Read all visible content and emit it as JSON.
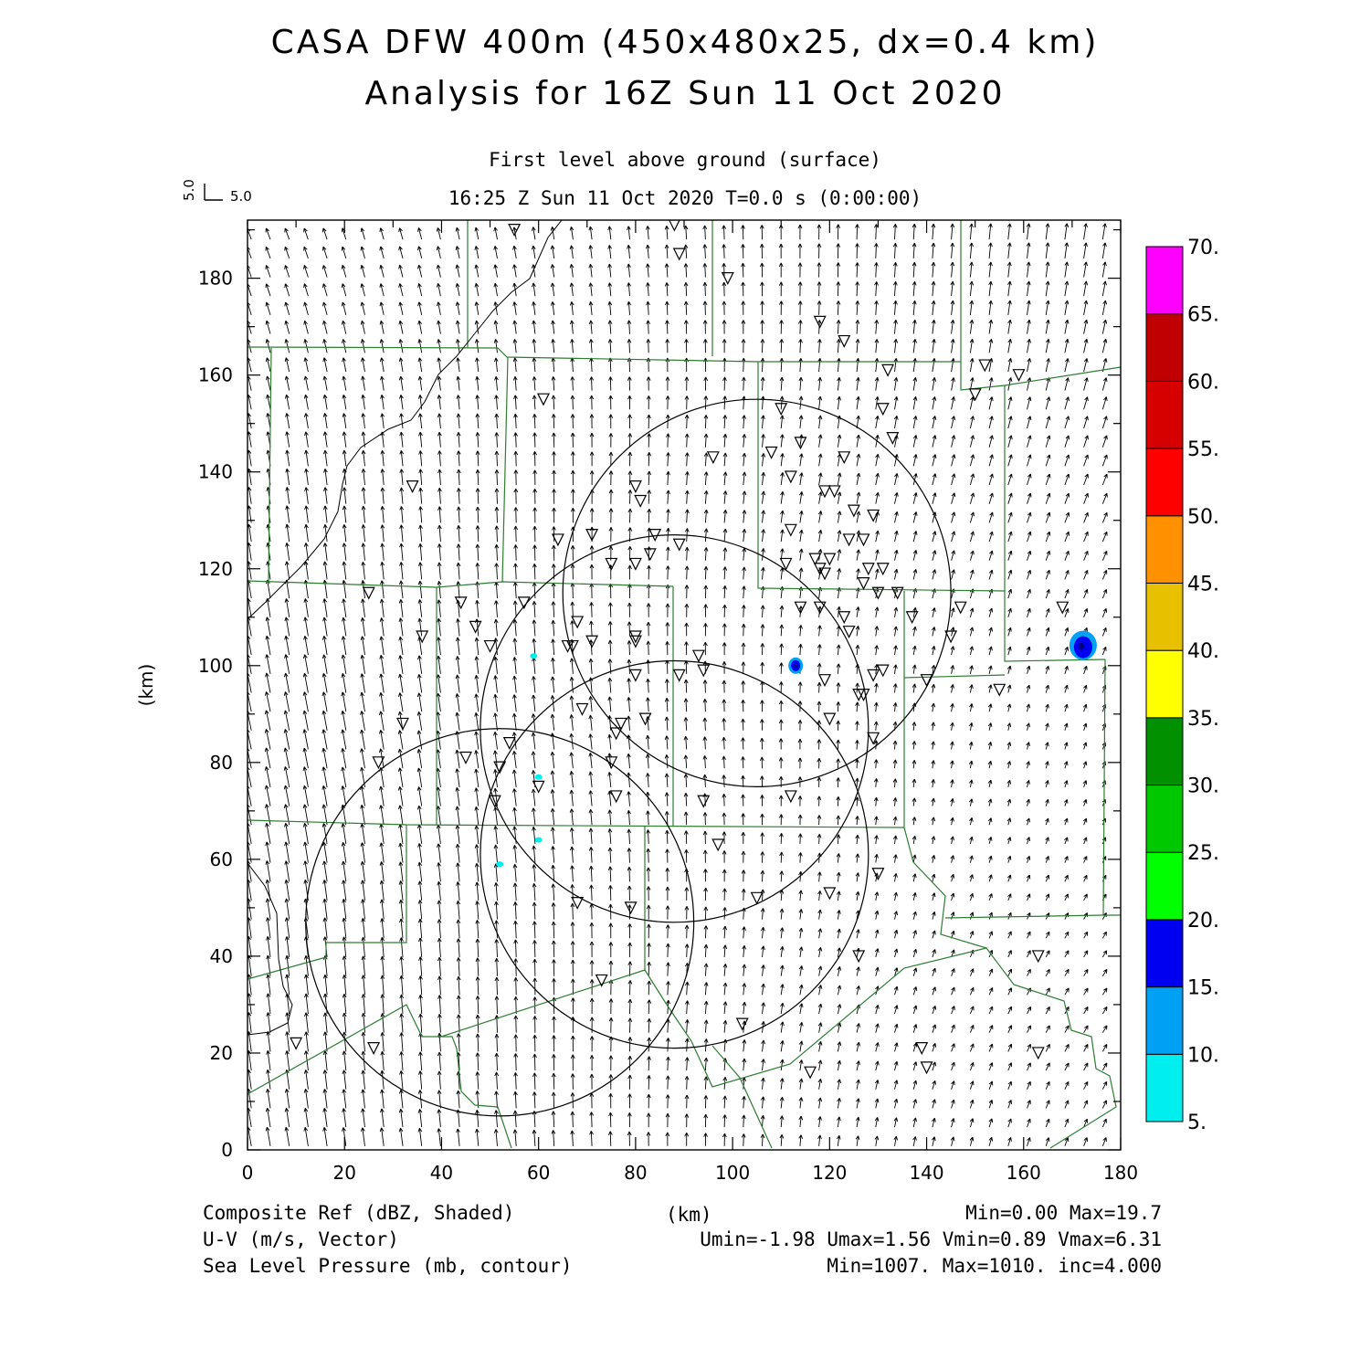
{
  "title": {
    "line1": "CASA DFW 400m (450x480x25, dx=0.4 km)",
    "line2": "Analysis for 16Z Sun 11 Oct 2020"
  },
  "subtitle": {
    "level": "First level above ground (surface)",
    "time": "16:25 Z Sun 11 Oct 2020   T=0.0 s (0:00:00)"
  },
  "vector_key": {
    "u_label": "5.0",
    "v_label": "5.0"
  },
  "axes": {
    "xlabel": "(km)",
    "ylabel": "(km)",
    "xlim": [
      0,
      180
    ],
    "ylim": [
      0,
      192
    ],
    "xticks": [
      "0",
      "20",
      "40",
      "60",
      "80",
      "100",
      "120",
      "140",
      "160",
      "180"
    ],
    "yticks": [
      "0",
      "20",
      "40",
      "60",
      "80",
      "100",
      "120",
      "140",
      "160",
      "180"
    ]
  },
  "colorbar": {
    "labels": [
      "5.",
      "10.",
      "15.",
      "20.",
      "25.",
      "30.",
      "35.",
      "40.",
      "45.",
      "50.",
      "55.",
      "60.",
      "65.",
      "70."
    ],
    "colors": [
      "#00eeee",
      "#00a0f5",
      "#0000f0",
      "#00ff00",
      "#00c800",
      "#009000",
      "#ffff00",
      "#e7c000",
      "#ff9000",
      "#ff0000",
      "#d60000",
      "#c00000",
      "#ff00ff"
    ]
  },
  "footer": {
    "left": [
      "Composite Ref (dBZ, Shaded)",
      "U-V (m/s, Vector)",
      "Sea Level Pressure (mb, contour)"
    ],
    "center": "(km)",
    "right": [
      "Min=0.00 Max=19.7",
      "Umin=-1.98 Umax=1.56 Vmin=0.89 Vmax=6.31",
      "Min=1007. Max=1010. inc=4.000"
    ]
  },
  "chart_data": {
    "type": "vector-field-map",
    "fields": [
      "Composite Ref (dBZ, Shaded)",
      "U-V (m/s, Vector)",
      "Sea Level Pressure (mb, contour)"
    ],
    "radar_rings": [
      {
        "center": [
          52,
          47
        ],
        "radius": 40
      },
      {
        "center": [
          88,
          87
        ],
        "radius": 40
      },
      {
        "center": [
          88,
          61
        ],
        "radius": 40
      },
      {
        "center": [
          105,
          115
        ],
        "radius": 40
      }
    ],
    "reflectivity_echoes": [
      {
        "x": 170,
        "y": 104,
        "dbz": 17
      },
      {
        "x": 113,
        "y": 100,
        "dbz": 16
      },
      {
        "x": 59,
        "y": 102,
        "dbz": 8
      },
      {
        "x": 60,
        "y": 77,
        "dbz": 7
      },
      {
        "x": 60,
        "y": 64,
        "dbz": 7
      },
      {
        "x": 52,
        "y": 59,
        "dbz": 6
      }
    ],
    "stations": [
      [
        55,
        190
      ],
      [
        88,
        191
      ],
      [
        89,
        185
      ],
      [
        99,
        180
      ],
      [
        118,
        171
      ],
      [
        123,
        167
      ],
      [
        132,
        161
      ],
      [
        152,
        162
      ],
      [
        159,
        160
      ],
      [
        61,
        155
      ],
      [
        131,
        153
      ],
      [
        150,
        156
      ],
      [
        110,
        153
      ],
      [
        114,
        146
      ],
      [
        123,
        143
      ],
      [
        133,
        147
      ],
      [
        108,
        144
      ],
      [
        96,
        143
      ],
      [
        112,
        139
      ],
      [
        119,
        136
      ],
      [
        121,
        136
      ],
      [
        80,
        137
      ],
      [
        34,
        137
      ],
      [
        81,
        134
      ],
      [
        129,
        131
      ],
      [
        125,
        132
      ],
      [
        112,
        128
      ],
      [
        64,
        126
      ],
      [
        71,
        127
      ],
      [
        84,
        127
      ],
      [
        89,
        125
      ],
      [
        127,
        126
      ],
      [
        124,
        126
      ],
      [
        83,
        123
      ],
      [
        75,
        121
      ],
      [
        80,
        121
      ],
      [
        111,
        121
      ],
      [
        117,
        122
      ],
      [
        120,
        122
      ],
      [
        118,
        120
      ],
      [
        119,
        119
      ],
      [
        128,
        120
      ],
      [
        131,
        120
      ],
      [
        127,
        117
      ],
      [
        130,
        115
      ],
      [
        134,
        115
      ],
      [
        25,
        115
      ],
      [
        57,
        113
      ],
      [
        44,
        113
      ],
      [
        68,
        109
      ],
      [
        47,
        108
      ],
      [
        36,
        106
      ],
      [
        50,
        104
      ],
      [
        71,
        105
      ],
      [
        66,
        104
      ],
      [
        67,
        104
      ],
      [
        80,
        106
      ],
      [
        80,
        105
      ],
      [
        123,
        110
      ],
      [
        124,
        107
      ],
      [
        137,
        110
      ],
      [
        114,
        112
      ],
      [
        118,
        112
      ],
      [
        145,
        106
      ],
      [
        147,
        112
      ],
      [
        168,
        112
      ],
      [
        93,
        102
      ],
      [
        94,
        99
      ],
      [
        89,
        98
      ],
      [
        80,
        98
      ],
      [
        119,
        97
      ],
      [
        129,
        98
      ],
      [
        131,
        99
      ],
      [
        126,
        94
      ],
      [
        127,
        94
      ],
      [
        140,
        97
      ],
      [
        155,
        95
      ],
      [
        69,
        91
      ],
      [
        77,
        88
      ],
      [
        76,
        86
      ],
      [
        82,
        89
      ],
      [
        120,
        89
      ],
      [
        129,
        85
      ],
      [
        32,
        88
      ],
      [
        27,
        80
      ],
      [
        45,
        81
      ],
      [
        52,
        79
      ],
      [
        54,
        84
      ],
      [
        60,
        75
      ],
      [
        75,
        80
      ],
      [
        76,
        73
      ],
      [
        51,
        72
      ],
      [
        94,
        72
      ],
      [
        112,
        73
      ],
      [
        97,
        63
      ],
      [
        130,
        57
      ],
      [
        120,
        53
      ],
      [
        105,
        52
      ],
      [
        68,
        51
      ],
      [
        79,
        50
      ],
      [
        126,
        40
      ],
      [
        163,
        40
      ],
      [
        73,
        35
      ],
      [
        102,
        26
      ],
      [
        10,
        22
      ],
      [
        26,
        21
      ],
      [
        139,
        21
      ],
      [
        140,
        17
      ],
      [
        116,
        16
      ],
      [
        163,
        20
      ]
    ]
  }
}
